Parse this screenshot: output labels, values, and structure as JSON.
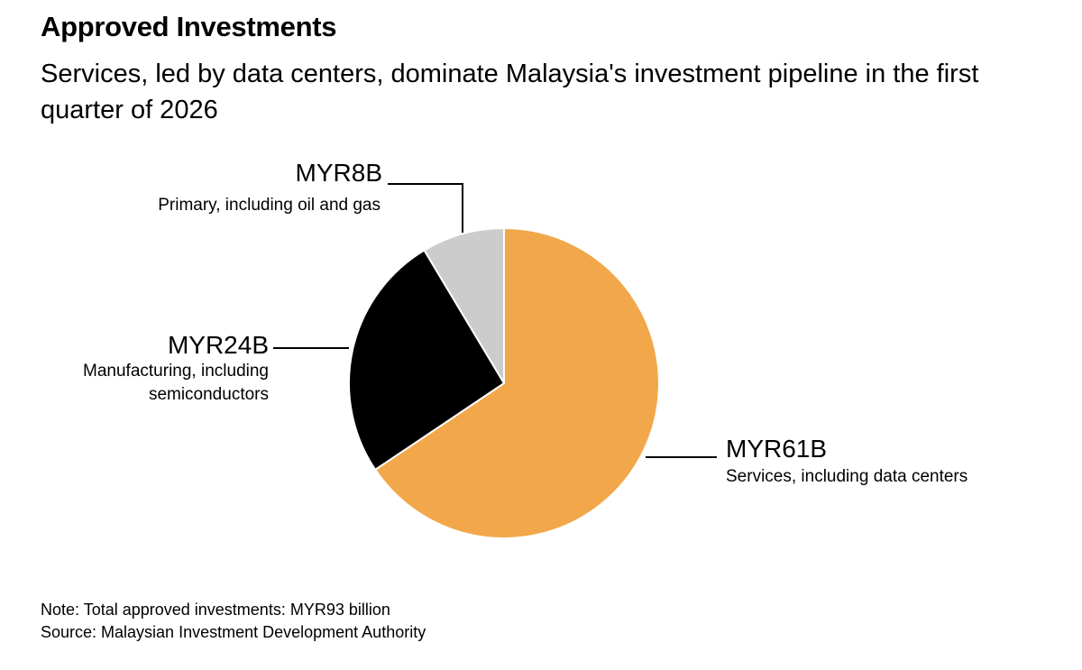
{
  "colors": {
    "services": "#F2A74A",
    "manufacturing": "#000000",
    "primary": "#CCCCCC",
    "leader_line": "#000000"
  },
  "chart_data": {
    "type": "pie",
    "title": "Approved Investments",
    "subtitle": "Services, led by data centers, dominate Malaysia's investment pipeline in the first quarter of 2026",
    "unit": "MYR billion",
    "start": "12 o'clock",
    "direction": "clockwise",
    "slices": [
      {
        "key": "services",
        "value": 61,
        "value_label": "MYR61B",
        "description_lines": [
          "Services, including data centers"
        ]
      },
      {
        "key": "manufacturing",
        "value": 24,
        "value_label": "MYR24B",
        "description_lines": [
          "Manufacturing, including",
          "semiconductors"
        ]
      },
      {
        "key": "primary",
        "value": 8,
        "value_label": "MYR8B",
        "description_lines": [
          "Primary, including oil and gas"
        ]
      }
    ]
  },
  "footer": {
    "note": "Note: Total approved investments: MYR93 billion",
    "source": "Source: Malaysian Investment Development Authority"
  }
}
